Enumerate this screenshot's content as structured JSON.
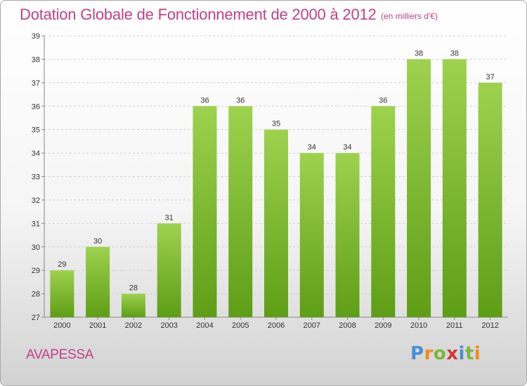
{
  "title": "Dotation Globale de Fonctionnement de 2000 à 2012",
  "subtitle": "(en milliers d'€)",
  "commune": "AVAPESSA",
  "logo": {
    "letters": [
      "P",
      "r",
      "o",
      "x",
      "i",
      "t",
      "i"
    ],
    "colors": [
      "#4a8fd6",
      "#f08a1c",
      "#7ab83a",
      "#d23a2e",
      "#4a8fd6",
      "#7ab83a",
      "#f08a1c"
    ]
  },
  "colors": {
    "title": "#c0408a",
    "bar_top": "#9ed24e",
    "bar_bottom": "#5e9e16",
    "grid": "#cfcfcf"
  },
  "chart_data": {
    "type": "bar",
    "title": "Dotation Globale de Fonctionnement de 2000 à 2012",
    "subtitle": "(en milliers d'€)",
    "categories": [
      "2000",
      "2001",
      "2002",
      "2003",
      "2004",
      "2005",
      "2006",
      "2007",
      "2008",
      "2009",
      "2010",
      "2011",
      "2012"
    ],
    "values": [
      29,
      30,
      28,
      31,
      36,
      36,
      35,
      34,
      34,
      36,
      38,
      38,
      37
    ],
    "ylim": [
      27,
      39
    ],
    "yticks": [
      27,
      28,
      29,
      30,
      31,
      32,
      33,
      34,
      35,
      36,
      37,
      38,
      39
    ],
    "grid": true,
    "legend": "none"
  }
}
